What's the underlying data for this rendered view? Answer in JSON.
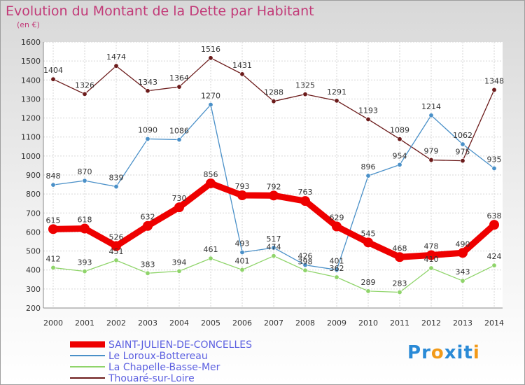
{
  "chart_data": {
    "type": "line",
    "title": "Evolution du Montant de la Dette par Habitant",
    "subtitle": "(en €)",
    "ylim": [
      200,
      1600
    ],
    "yticks": [
      200,
      300,
      400,
      500,
      600,
      700,
      800,
      900,
      1000,
      1100,
      1200,
      1300,
      1400,
      1500,
      1600
    ],
    "categories": [
      "2000",
      "2001",
      "2002",
      "2003",
      "2004",
      "2005",
      "2006",
      "2007",
      "2008",
      "2009",
      "2010",
      "2011",
      "2012",
      "2013",
      "2014"
    ],
    "grid": true,
    "legend": "bottom-left",
    "series": [
      {
        "name": "SAINT-JULIEN-DE-CONCELLES",
        "color": "#ee0000",
        "values": [
          615,
          618,
          526,
          632,
          730,
          856,
          793,
          792,
          763,
          629,
          545,
          468,
          478,
          490,
          638
        ]
      },
      {
        "name": "Le Loroux-Bottereau",
        "color": "#4a90c8",
        "values": [
          848,
          870,
          839,
          1090,
          1086,
          1270,
          493,
          517,
          426,
          401,
          896,
          954,
          1214,
          1062,
          935
        ]
      },
      {
        "name": "La Chapelle-Basse-Mer",
        "color": "#8fd46a",
        "values": [
          412,
          393,
          451,
          383,
          394,
          461,
          401,
          474,
          398,
          362,
          289,
          283,
          410,
          343,
          424
        ]
      },
      {
        "name": "Thouaré-sur-Loire",
        "color": "#6b1a1a",
        "values": [
          1404,
          1326,
          1474,
          1343,
          1364,
          1516,
          1431,
          1288,
          1325,
          1291,
          1193,
          1089,
          979,
          975,
          1348
        ]
      }
    ]
  },
  "logo": {
    "text": "Proxiti",
    "letters": [
      "P",
      "r",
      "o",
      "x",
      "i",
      "t",
      "i"
    ],
    "colors": [
      "#2a8ad6",
      "#2a8ad6",
      "#f29a19",
      "#2a8ad6",
      "#2a8ad6",
      "#2a8ad6",
      "#f29a19"
    ]
  }
}
